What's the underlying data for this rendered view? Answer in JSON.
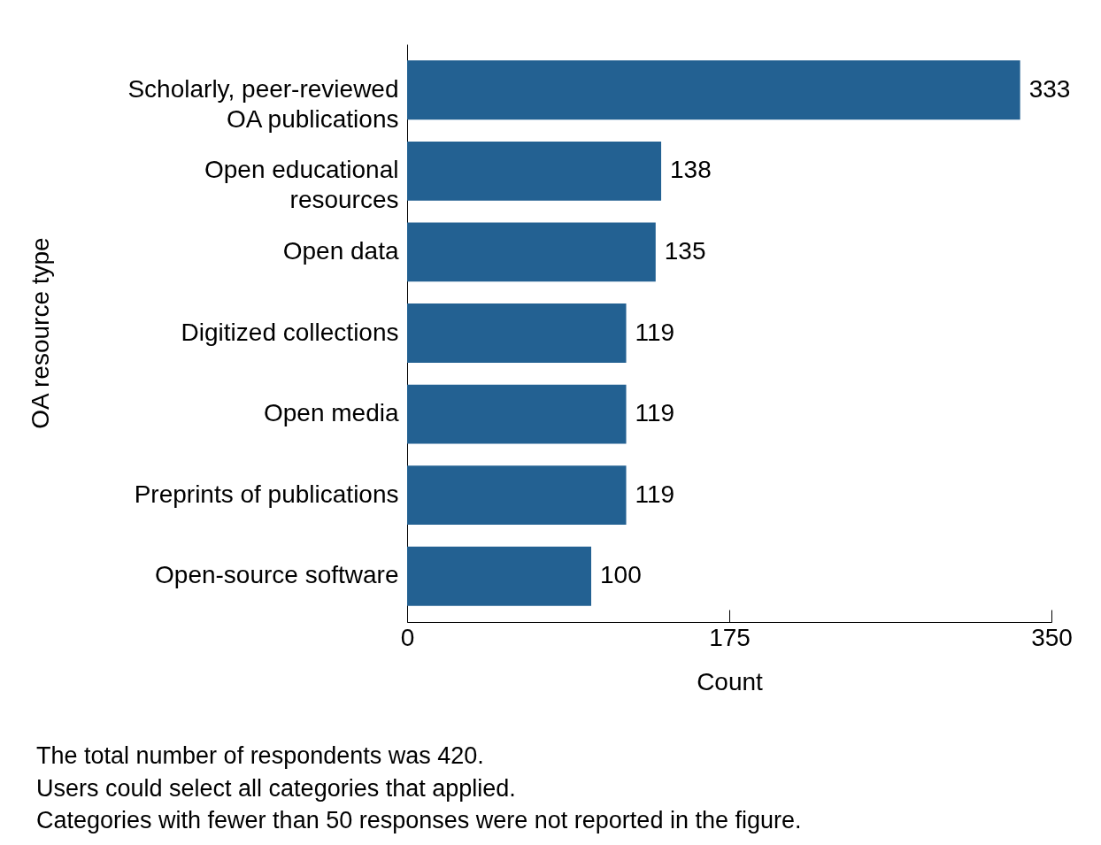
{
  "chart_data": {
    "type": "bar",
    "orientation": "horizontal",
    "categories": [
      "Scholarly, peer-reviewed OA publications",
      "Open educational resources",
      "Open data",
      "Digitized collections",
      "Open media",
      "Preprints of publications",
      "Open-source software"
    ],
    "values": [
      333,
      138,
      135,
      119,
      119,
      119,
      100
    ],
    "color": "#236192",
    "xlim": [
      0,
      350
    ],
    "xticks": [
      0,
      175,
      350
    ],
    "xlabel": "Count",
    "ylabel": "OA resource type",
    "data_labels": true,
    "grid": false,
    "annotations": [
      "The total number of respondents was 420.",
      "Users could select all categories that applied.",
      "Categories with fewer than 50 responses were not reported in the figure."
    ]
  }
}
